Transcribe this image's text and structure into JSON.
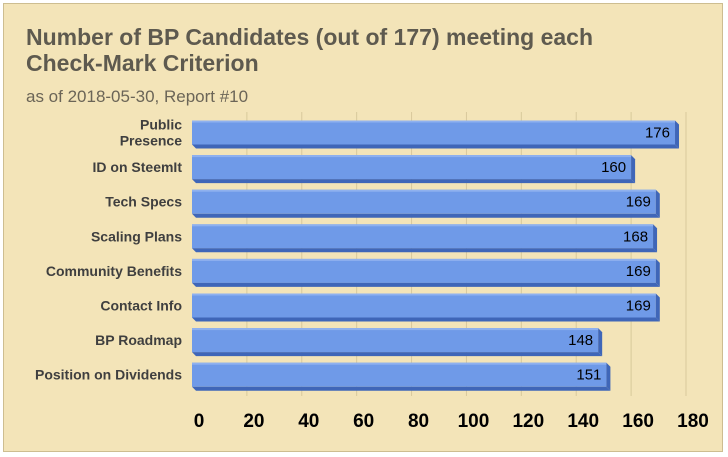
{
  "chart_data": {
    "type": "bar",
    "orientation": "horizontal",
    "title": "Number of BP Candidates (out of 177) meeting each Check-Mark Criterion",
    "subtitle": "as of 2018-05-30, Report #10",
    "categories": [
      "Public Presence",
      "ID on SteemIt",
      "Tech Specs",
      "Scaling Plans",
      "Community Benefits",
      "Contact Info",
      "BP Roadmap",
      "Position on Dividends"
    ],
    "values": [
      176,
      160,
      169,
      168,
      169,
      169,
      148,
      151
    ],
    "xlim": [
      0,
      180
    ],
    "xticks": [
      0,
      20,
      40,
      60,
      80,
      100,
      120,
      140,
      160,
      180
    ],
    "xlabel": "",
    "ylabel": "",
    "grid": "vertical",
    "legend": "none",
    "colors": {
      "bar": "#6f9ae8",
      "bar_top": "#8fb1ef",
      "bar_side": "#3f66b8",
      "grid": "#d8c99c",
      "background": "#f3e4b8"
    }
  }
}
